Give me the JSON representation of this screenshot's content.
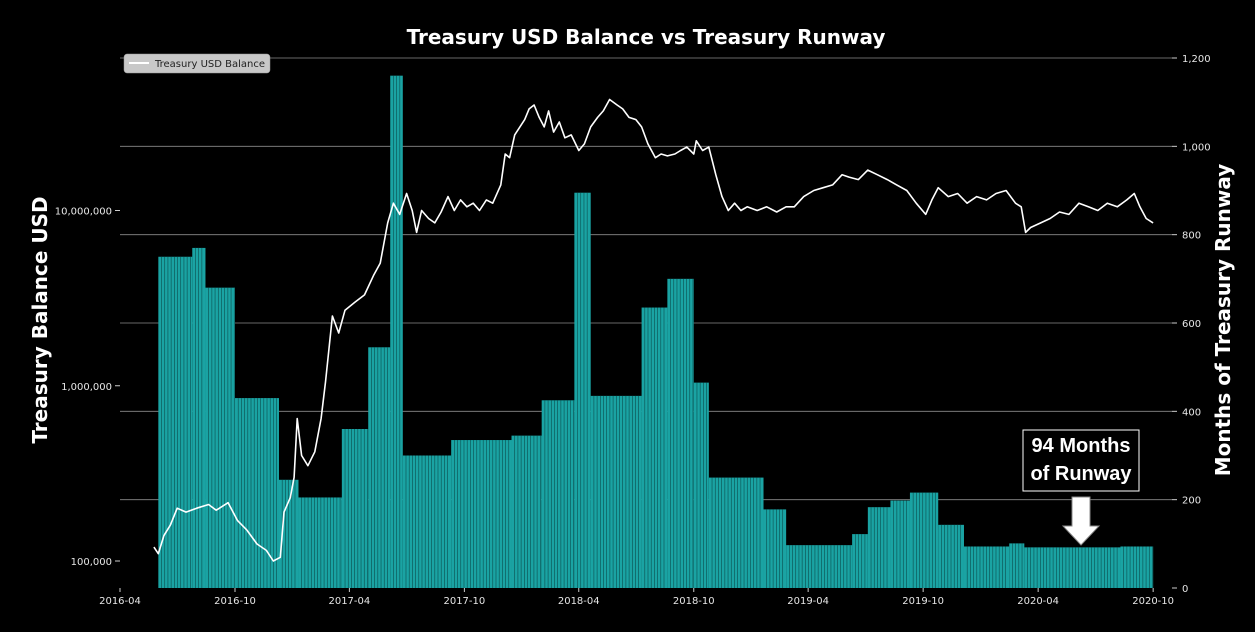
{
  "chart_data": {
    "type": "bar+line",
    "title": "Treasury USD Balance vs Treasury Runway",
    "ylabel_left": "Treasury Balance USD",
    "ylabel_right": "Months of Treasury Runway",
    "left_axis": {
      "scale": "log",
      "ticks": [
        100000,
        1000000,
        10000000
      ],
      "tick_labels": [
        "100,000",
        "1,000,000",
        "10,000,000"
      ]
    },
    "right_axis": {
      "range": [
        0,
        1200
      ],
      "ticks": [
        0,
        200,
        400,
        600,
        800,
        1000,
        1200
      ],
      "tick_labels": [
        "0",
        "200",
        "400",
        "600",
        "800",
        "1,000",
        "1,200"
      ]
    },
    "x_axis": {
      "range": [
        "2016-04-01",
        "2020-10-31"
      ],
      "ticks": [
        "2016-04-01",
        "2016-10-01",
        "2017-04-01",
        "2017-10-01",
        "2018-04-01",
        "2018-10-01",
        "2019-04-01",
        "2019-10-01",
        "2020-04-01",
        "2020-10-01"
      ],
      "tick_labels": [
        "2016-04",
        "2016-10",
        "2017-04",
        "2017-10",
        "2018-04",
        "2018-10",
        "2019-04",
        "2019-10",
        "2020-04",
        "2020-10"
      ]
    },
    "grid": "horizontal",
    "legend": {
      "position": "top-left",
      "entries": [
        "Treasury USD Balance"
      ]
    },
    "series": [
      {
        "name": "Treasury USD Balance",
        "kind": "line",
        "color": "#ffffff",
        "axis": "left",
        "points": [
          [
            "2016-05-25",
            120000
          ],
          [
            "2016-06-01",
            110000
          ],
          [
            "2016-06-10",
            140000
          ],
          [
            "2016-06-20",
            160000
          ],
          [
            "2016-07-01",
            200000
          ],
          [
            "2016-07-15",
            190000
          ],
          [
            "2016-08-01",
            200000
          ],
          [
            "2016-08-20",
            210000
          ],
          [
            "2016-09-01",
            195000
          ],
          [
            "2016-09-20",
            215000
          ],
          [
            "2016-10-05",
            170000
          ],
          [
            "2016-10-20",
            150000
          ],
          [
            "2016-11-05",
            125000
          ],
          [
            "2016-11-20",
            115000
          ],
          [
            "2016-12-01",
            100000
          ],
          [
            "2016-12-12",
            105000
          ],
          [
            "2016-12-18",
            190000
          ],
          [
            "2016-12-28",
            230000
          ],
          [
            "2017-01-03",
            300000
          ],
          [
            "2017-01-08",
            650000
          ],
          [
            "2017-01-15",
            400000
          ],
          [
            "2017-01-25",
            350000
          ],
          [
            "2017-02-05",
            420000
          ],
          [
            "2017-02-15",
            650000
          ],
          [
            "2017-02-22",
            1050000
          ],
          [
            "2017-03-05",
            2500000
          ],
          [
            "2017-03-15",
            2000000
          ],
          [
            "2017-03-25",
            2700000
          ],
          [
            "2017-04-10",
            3000000
          ],
          [
            "2017-04-25",
            3300000
          ],
          [
            "2017-05-10",
            4300000
          ],
          [
            "2017-05-20",
            5000000
          ],
          [
            "2017-06-01",
            8500000
          ],
          [
            "2017-06-10",
            11000000
          ],
          [
            "2017-06-20",
            9500000
          ],
          [
            "2017-07-01",
            12500000
          ],
          [
            "2017-07-10",
            10000000
          ],
          [
            "2017-07-17",
            7500000
          ],
          [
            "2017-07-25",
            10000000
          ],
          [
            "2017-08-05",
            9000000
          ],
          [
            "2017-08-15",
            8500000
          ],
          [
            "2017-08-25",
            9800000
          ],
          [
            "2017-09-05",
            12000000
          ],
          [
            "2017-09-15",
            10000000
          ],
          [
            "2017-09-25",
            11500000
          ],
          [
            "2017-10-05",
            10500000
          ],
          [
            "2017-10-15",
            11000000
          ],
          [
            "2017-10-25",
            10000000
          ],
          [
            "2017-11-05",
            11500000
          ],
          [
            "2017-11-15",
            11000000
          ],
          [
            "2017-11-28",
            14000000
          ],
          [
            "2017-12-05",
            21000000
          ],
          [
            "2017-12-12",
            20000000
          ],
          [
            "2017-12-20",
            27000000
          ],
          [
            "2018-01-05",
            33000000
          ],
          [
            "2018-01-12",
            38000000
          ],
          [
            "2018-01-20",
            40000000
          ],
          [
            "2018-01-28",
            34000000
          ],
          [
            "2018-02-05",
            30000000
          ],
          [
            "2018-02-12",
            37000000
          ],
          [
            "2018-02-20",
            28000000
          ],
          [
            "2018-03-01",
            32000000
          ],
          [
            "2018-03-10",
            26000000
          ],
          [
            "2018-03-20",
            27000000
          ],
          [
            "2018-04-01",
            22000000
          ],
          [
            "2018-04-10",
            24000000
          ],
          [
            "2018-04-20",
            30000000
          ],
          [
            "2018-05-01",
            34000000
          ],
          [
            "2018-05-10",
            37000000
          ],
          [
            "2018-05-20",
            43000000
          ],
          [
            "2018-06-01",
            40000000
          ],
          [
            "2018-06-10",
            38000000
          ],
          [
            "2018-06-20",
            34000000
          ],
          [
            "2018-07-01",
            33000000
          ],
          [
            "2018-07-10",
            30000000
          ],
          [
            "2018-07-20",
            24000000
          ],
          [
            "2018-08-01",
            20000000
          ],
          [
            "2018-08-10",
            21000000
          ],
          [
            "2018-08-20",
            20500000
          ],
          [
            "2018-09-01",
            21000000
          ],
          [
            "2018-09-10",
            22000000
          ],
          [
            "2018-09-20",
            23000000
          ],
          [
            "2018-10-01",
            21000000
          ],
          [
            "2018-10-05",
            25000000
          ],
          [
            "2018-10-15",
            22000000
          ],
          [
            "2018-10-25",
            23000000
          ],
          [
            "2018-11-05",
            16000000
          ],
          [
            "2018-11-15",
            12000000
          ],
          [
            "2018-11-25",
            10000000
          ],
          [
            "2018-12-05",
            11000000
          ],
          [
            "2018-12-15",
            10000000
          ],
          [
            "2018-12-25",
            10500000
          ],
          [
            "2019-01-10",
            10000000
          ],
          [
            "2019-01-25",
            10500000
          ],
          [
            "2019-02-10",
            9800000
          ],
          [
            "2019-02-25",
            10500000
          ],
          [
            "2019-03-10",
            10500000
          ],
          [
            "2019-03-25",
            12000000
          ],
          [
            "2019-04-10",
            13000000
          ],
          [
            "2019-04-25",
            13500000
          ],
          [
            "2019-05-10",
            14000000
          ],
          [
            "2019-05-25",
            16000000
          ],
          [
            "2019-06-05",
            15500000
          ],
          [
            "2019-06-20",
            15000000
          ],
          [
            "2019-07-05",
            17000000
          ],
          [
            "2019-07-20",
            16000000
          ],
          [
            "2019-08-05",
            15000000
          ],
          [
            "2019-08-20",
            14000000
          ],
          [
            "2019-09-05",
            13000000
          ],
          [
            "2019-09-20",
            11000000
          ],
          [
            "2019-10-05",
            9500000
          ],
          [
            "2019-10-15",
            11500000
          ],
          [
            "2019-10-25",
            13500000
          ],
          [
            "2019-11-10",
            12000000
          ],
          [
            "2019-11-25",
            12500000
          ],
          [
            "2019-12-10",
            11000000
          ],
          [
            "2019-12-25",
            12000000
          ],
          [
            "2020-01-10",
            11500000
          ],
          [
            "2020-01-25",
            12500000
          ],
          [
            "2020-02-10",
            13000000
          ],
          [
            "2020-02-25",
            11000000
          ],
          [
            "2020-03-05",
            10500000
          ],
          [
            "2020-03-12",
            7500000
          ],
          [
            "2020-03-20",
            8000000
          ],
          [
            "2020-04-05",
            8500000
          ],
          [
            "2020-04-20",
            9000000
          ],
          [
            "2020-05-05",
            9800000
          ],
          [
            "2020-05-20",
            9500000
          ],
          [
            "2020-06-05",
            11000000
          ],
          [
            "2020-06-20",
            10500000
          ],
          [
            "2020-07-05",
            10000000
          ],
          [
            "2020-07-20",
            11000000
          ],
          [
            "2020-08-05",
            10500000
          ],
          [
            "2020-08-20",
            11500000
          ],
          [
            "2020-09-01",
            12500000
          ],
          [
            "2020-09-10",
            10500000
          ],
          [
            "2020-09-20",
            9000000
          ],
          [
            "2020-10-01",
            8500000
          ]
        ]
      },
      {
        "name": "Months of Treasury Runway",
        "kind": "bar",
        "color": "#1aa3a3",
        "axis": "right",
        "segments": [
          {
            "start": "2016-06-01",
            "end": "2016-07-25",
            "value": 750
          },
          {
            "start": "2016-07-25",
            "end": "2016-08-15",
            "value": 770
          },
          {
            "start": "2016-08-15",
            "end": "2016-10-01",
            "value": 680
          },
          {
            "start": "2016-10-01",
            "end": "2016-12-10",
            "value": 430
          },
          {
            "start": "2016-12-10",
            "end": "2017-01-10",
            "value": 245
          },
          {
            "start": "2017-01-10",
            "end": "2017-03-20",
            "value": 205
          },
          {
            "start": "2017-03-20",
            "end": "2017-05-01",
            "value": 360
          },
          {
            "start": "2017-05-01",
            "end": "2017-06-05",
            "value": 545
          },
          {
            "start": "2017-06-05",
            "end": "2017-06-25",
            "value": 1160
          },
          {
            "start": "2017-06-25",
            "end": "2017-09-10",
            "value": 300
          },
          {
            "start": "2017-09-10",
            "end": "2017-12-15",
            "value": 335
          },
          {
            "start": "2017-12-15",
            "end": "2018-02-01",
            "value": 345
          },
          {
            "start": "2018-02-01",
            "end": "2018-03-25",
            "value": 425
          },
          {
            "start": "2018-03-25",
            "end": "2018-04-20",
            "value": 895
          },
          {
            "start": "2018-04-20",
            "end": "2018-07-10",
            "value": 435
          },
          {
            "start": "2018-07-10",
            "end": "2018-08-20",
            "value": 635
          },
          {
            "start": "2018-08-20",
            "end": "2018-10-01",
            "value": 700
          },
          {
            "start": "2018-10-01",
            "end": "2018-10-25",
            "value": 465
          },
          {
            "start": "2018-10-25",
            "end": "2019-01-20",
            "value": 250
          },
          {
            "start": "2019-01-20",
            "end": "2019-02-25",
            "value": 178
          },
          {
            "start": "2019-02-25",
            "end": "2019-06-10",
            "value": 97
          },
          {
            "start": "2019-06-10",
            "end": "2019-07-05",
            "value": 122
          },
          {
            "start": "2019-07-05",
            "end": "2019-08-10",
            "value": 183
          },
          {
            "start": "2019-08-10",
            "end": "2019-09-10",
            "value": 198
          },
          {
            "start": "2019-09-10",
            "end": "2019-10-25",
            "value": 216
          },
          {
            "start": "2019-10-25",
            "end": "2019-12-05",
            "value": 143
          },
          {
            "start": "2019-12-05",
            "end": "2020-02-15",
            "value": 94
          },
          {
            "start": "2020-02-15",
            "end": "2020-03-10",
            "value": 101
          },
          {
            "start": "2020-03-10",
            "end": "2020-08-10",
            "value": 92
          },
          {
            "start": "2020-08-10",
            "end": "2020-10-01",
            "value": 94
          }
        ]
      }
    ],
    "annotations": [
      {
        "text_lines": [
          "94 Months",
          "of Runway"
        ],
        "points_to": "2020-07-20",
        "value": 94,
        "arrow": "down"
      }
    ]
  }
}
